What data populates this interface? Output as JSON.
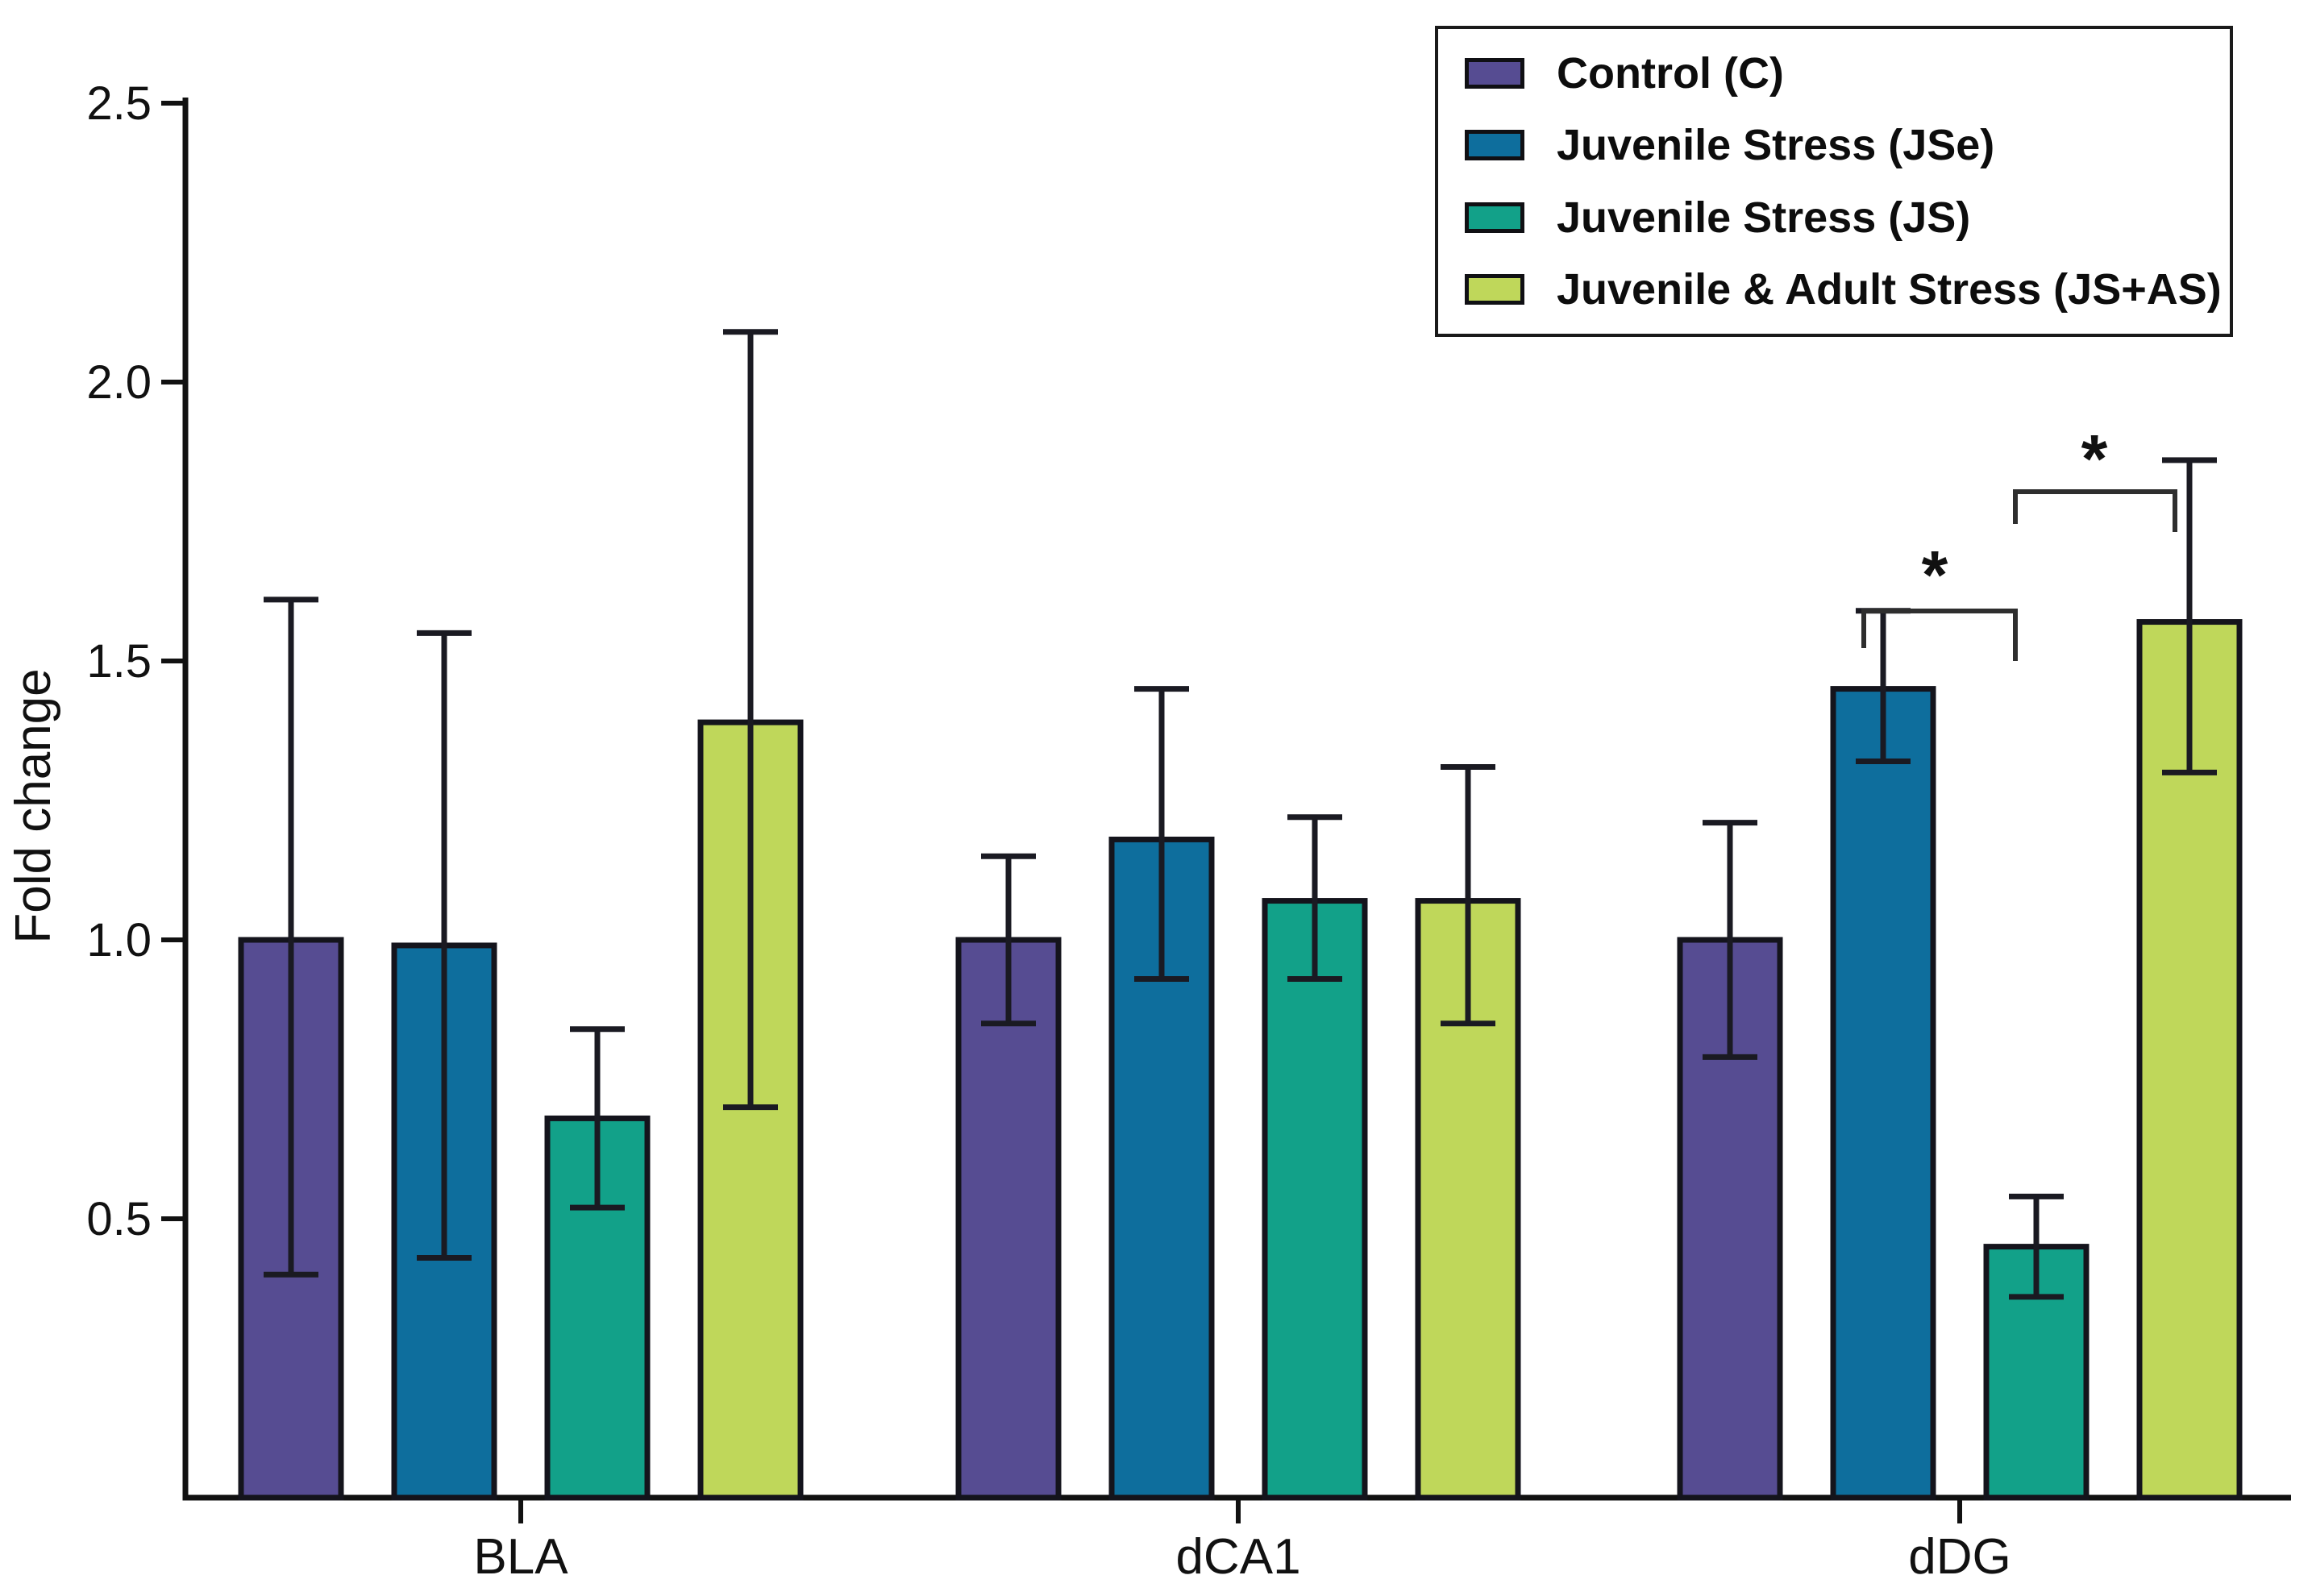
{
  "figure": {
    "background": "#ffffff"
  },
  "chart_data": {
    "type": "bar",
    "title": "",
    "xlabel": "",
    "ylabel": "Fold change",
    "ylim": [
      0,
      2.5
    ],
    "ytick_labels": [
      "0.5",
      "1.0",
      "1.5",
      "2.0",
      "2.5"
    ],
    "categories": [
      "BLA",
      "dCA1",
      "dDG"
    ],
    "grid": false,
    "legend_position": "top-right",
    "bar_outline_color": "#14141c",
    "error_bar_color": "#1a1a22",
    "series": [
      {
        "name": "Control (C)",
        "key": "control",
        "color": "#564C92",
        "values": [
          1.0,
          1.0,
          1.0
        ],
        "error_low": [
          0.4,
          0.85,
          0.79
        ],
        "error_high": [
          1.61,
          1.15,
          1.21
        ]
      },
      {
        "name": "Juvenile Stress (JSe)",
        "key": "jse",
        "color": "#0E6E9D",
        "values": [
          0.99,
          1.18,
          1.45
        ],
        "error_low": [
          0.43,
          0.93,
          1.32
        ],
        "error_high": [
          1.55,
          1.45,
          1.59
        ]
      },
      {
        "name": "Juvenile Stress (JS)",
        "key": "js",
        "color": "#12A189",
        "values": [
          0.68,
          1.07,
          0.45
        ],
        "error_low": [
          0.52,
          0.93,
          0.36
        ],
        "error_high": [
          0.84,
          1.22,
          0.54
        ]
      },
      {
        "name": "Juvenile & Adult Stress (JS+AS)",
        "key": "js-as",
        "color": "#BFD75A",
        "values": [
          1.39,
          1.07,
          1.57
        ],
        "error_low": [
          0.7,
          0.85,
          1.3
        ],
        "error_high": [
          2.09,
          1.31,
          1.86
        ]
      }
    ],
    "significance": [
      {
        "symbol": "*",
        "category": "dDG",
        "between": [
          "Juvenile Stress (JSe)",
          "Juvenile Stress (JS)"
        ]
      },
      {
        "symbol": "*",
        "category": "dDG",
        "between": [
          "Juvenile Stress (JS)",
          "Juvenile & Adult Stress (JS+AS)"
        ]
      }
    ]
  }
}
